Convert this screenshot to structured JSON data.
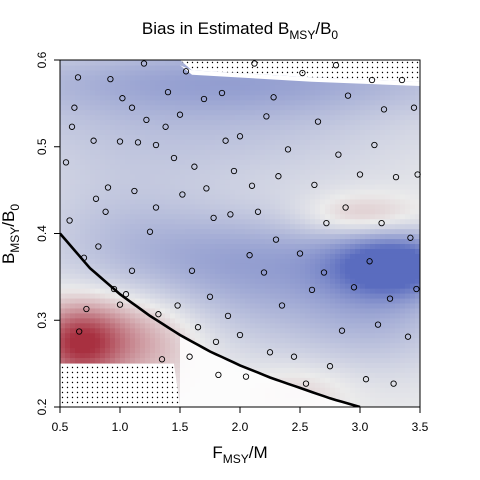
{
  "chart_data": {
    "type": "heatmap",
    "title": "Bias in Estimated B",
    "title_sub": "MSY",
    "title_sep": "/",
    "title_end": "B",
    "title_end_sub": "0",
    "xlabel": "F",
    "xlabel_sub": "MSY",
    "xlabel_end": "/M",
    "ylabel": "B",
    "ylabel_sub": "MSY",
    "ylabel_end": "/B",
    "ylabel_end_sub": "0",
    "xlim": [
      0.5,
      3.5
    ],
    "ylim": [
      0.2,
      0.6
    ],
    "x_ticks": [
      0.5,
      1.0,
      1.5,
      2.0,
      2.5,
      3.0,
      3.5
    ],
    "x_tick_labels": [
      "0.5",
      "1.0",
      "1.5",
      "2.0",
      "2.5",
      "3.0",
      "3.5"
    ],
    "y_ticks": [
      0.2,
      0.3,
      0.4,
      0.5,
      0.6
    ],
    "y_tick_labels": [
      "0.2",
      "0.3",
      "0.4",
      "0.5",
      "0.6"
    ],
    "colors": {
      "negative": "#5a6cbf",
      "neutral": "#ebebeb",
      "positive": "#a83040",
      "curve": "#000000",
      "points": "#000000"
    },
    "grid": false,
    "legend": "none",
    "curve": {
      "x": [
        0.5,
        0.75,
        1.0,
        1.25,
        1.5,
        1.75,
        2.0,
        2.25,
        2.5,
        2.75,
        3.0
      ],
      "y": [
        0.4,
        0.36,
        0.33,
        0.305,
        0.283,
        0.264,
        0.248,
        0.234,
        0.222,
        0.21,
        0.2
      ]
    },
    "hatched_regions": [
      "upper-right: F/M > 1.5 and B/B0 > 0.58",
      "lower-left: below curve, F/M 0.5–1.5, B/B0 0.2–0.25"
    ],
    "bias_field": [
      {
        "x": 3.3,
        "y": 0.365,
        "v": -0.95,
        "sx": 0.35,
        "sy": 0.025
      },
      {
        "x": 2.2,
        "y": 0.37,
        "v": -0.5,
        "sx": 0.8,
        "sy": 0.04
      },
      {
        "x": 1.0,
        "y": 0.4,
        "v": -0.25,
        "sx": 0.6,
        "sy": 0.05
      },
      {
        "x": 1.6,
        "y": 0.52,
        "v": -0.3,
        "sx": 1.4,
        "sy": 0.05
      },
      {
        "x": 2.0,
        "y": 0.58,
        "v": -0.45,
        "sx": 1.6,
        "sy": 0.03
      },
      {
        "x": 3.2,
        "y": 0.31,
        "v": -0.35,
        "sx": 0.5,
        "sy": 0.05
      },
      {
        "x": 2.1,
        "y": 0.3,
        "v": -0.2,
        "sx": 0.7,
        "sy": 0.04
      },
      {
        "x": 0.65,
        "y": 0.275,
        "v": 0.85,
        "sx": 0.25,
        "sy": 0.03
      },
      {
        "x": 1.1,
        "y": 0.28,
        "v": 0.45,
        "sx": 0.4,
        "sy": 0.035
      },
      {
        "x": 3.0,
        "y": 0.42,
        "v": 0.35,
        "sx": 0.35,
        "sy": 0.018
      },
      {
        "x": 2.5,
        "y": 0.22,
        "v": 0.15,
        "sx": 0.3,
        "sy": 0.02
      }
    ],
    "points": [
      {
        "x": 0.55,
        "y": 0.482
      },
      {
        "x": 0.58,
        "y": 0.415
      },
      {
        "x": 0.6,
        "y": 0.523
      },
      {
        "x": 0.62,
        "y": 0.545
      },
      {
        "x": 0.65,
        "y": 0.58
      },
      {
        "x": 0.66,
        "y": 0.287
      },
      {
        "x": 0.7,
        "y": 0.372
      },
      {
        "x": 0.72,
        "y": 0.313
      },
      {
        "x": 0.78,
        "y": 0.507
      },
      {
        "x": 0.8,
        "y": 0.44
      },
      {
        "x": 0.82,
        "y": 0.385
      },
      {
        "x": 0.88,
        "y": 0.425
      },
      {
        "x": 0.9,
        "y": 0.453
      },
      {
        "x": 0.92,
        "y": 0.578
      },
      {
        "x": 0.95,
        "y": 0.336
      },
      {
        "x": 1.0,
        "y": 0.506
      },
      {
        "x": 1.0,
        "y": 0.318
      },
      {
        "x": 1.02,
        "y": 0.556
      },
      {
        "x": 1.05,
        "y": 0.33
      },
      {
        "x": 1.1,
        "y": 0.545
      },
      {
        "x": 1.1,
        "y": 0.357
      },
      {
        "x": 1.12,
        "y": 0.449
      },
      {
        "x": 1.15,
        "y": 0.505
      },
      {
        "x": 1.2,
        "y": 0.596
      },
      {
        "x": 1.22,
        "y": 0.531
      },
      {
        "x": 1.25,
        "y": 0.402
      },
      {
        "x": 1.3,
        "y": 0.43
      },
      {
        "x": 1.3,
        "y": 0.502
      },
      {
        "x": 1.32,
        "y": 0.307
      },
      {
        "x": 1.35,
        "y": 0.255
      },
      {
        "x": 1.38,
        "y": 0.523
      },
      {
        "x": 1.4,
        "y": 0.563
      },
      {
        "x": 1.45,
        "y": 0.487
      },
      {
        "x": 1.48,
        "y": 0.317
      },
      {
        "x": 1.5,
        "y": 0.537
      },
      {
        "x": 1.52,
        "y": 0.445
      },
      {
        "x": 1.55,
        "y": 0.587
      },
      {
        "x": 1.58,
        "y": 0.258
      },
      {
        "x": 1.6,
        "y": 0.357
      },
      {
        "x": 1.62,
        "y": 0.477
      },
      {
        "x": 1.65,
        "y": 0.292
      },
      {
        "x": 1.7,
        "y": 0.555
      },
      {
        "x": 1.72,
        "y": 0.452
      },
      {
        "x": 1.75,
        "y": 0.327
      },
      {
        "x": 1.78,
        "y": 0.418
      },
      {
        "x": 1.8,
        "y": 0.275
      },
      {
        "x": 1.82,
        "y": 0.237
      },
      {
        "x": 1.85,
        "y": 0.562
      },
      {
        "x": 1.88,
        "y": 0.507
      },
      {
        "x": 1.9,
        "y": 0.305
      },
      {
        "x": 1.92,
        "y": 0.422
      },
      {
        "x": 1.95,
        "y": 0.472
      },
      {
        "x": 2.0,
        "y": 0.512
      },
      {
        "x": 2.0,
        "y": 0.283
      },
      {
        "x": 2.05,
        "y": 0.235
      },
      {
        "x": 2.08,
        "y": 0.375
      },
      {
        "x": 2.1,
        "y": 0.455
      },
      {
        "x": 2.12,
        "y": 0.596
      },
      {
        "x": 2.15,
        "y": 0.425
      },
      {
        "x": 2.2,
        "y": 0.355
      },
      {
        "x": 2.22,
        "y": 0.535
      },
      {
        "x": 2.25,
        "y": 0.263
      },
      {
        "x": 2.28,
        "y": 0.557
      },
      {
        "x": 2.3,
        "y": 0.393
      },
      {
        "x": 2.32,
        "y": 0.466
      },
      {
        "x": 2.35,
        "y": 0.317
      },
      {
        "x": 2.4,
        "y": 0.497
      },
      {
        "x": 2.45,
        "y": 0.258
      },
      {
        "x": 2.5,
        "y": 0.377
      },
      {
        "x": 2.52,
        "y": 0.585
      },
      {
        "x": 2.55,
        "y": 0.227
      },
      {
        "x": 2.6,
        "y": 0.335
      },
      {
        "x": 2.62,
        "y": 0.456
      },
      {
        "x": 2.65,
        "y": 0.529
      },
      {
        "x": 2.7,
        "y": 0.355
      },
      {
        "x": 2.72,
        "y": 0.412
      },
      {
        "x": 2.75,
        "y": 0.247
      },
      {
        "x": 2.8,
        "y": 0.594
      },
      {
        "x": 2.82,
        "y": 0.491
      },
      {
        "x": 2.85,
        "y": 0.288
      },
      {
        "x": 2.88,
        "y": 0.43
      },
      {
        "x": 2.9,
        "y": 0.559
      },
      {
        "x": 2.95,
        "y": 0.338
      },
      {
        "x": 3.0,
        "y": 0.468
      },
      {
        "x": 3.05,
        "y": 0.232
      },
      {
        "x": 3.08,
        "y": 0.368
      },
      {
        "x": 3.1,
        "y": 0.577
      },
      {
        "x": 3.12,
        "y": 0.502
      },
      {
        "x": 3.15,
        "y": 0.295
      },
      {
        "x": 3.18,
        "y": 0.412
      },
      {
        "x": 3.2,
        "y": 0.543
      },
      {
        "x": 3.25,
        "y": 0.325
      },
      {
        "x": 3.28,
        "y": 0.227
      },
      {
        "x": 3.3,
        "y": 0.465
      },
      {
        "x": 3.35,
        "y": 0.577
      },
      {
        "x": 3.4,
        "y": 0.281
      },
      {
        "x": 3.42,
        "y": 0.395
      },
      {
        "x": 3.45,
        "y": 0.545
      },
      {
        "x": 3.47,
        "y": 0.336
      },
      {
        "x": 3.48,
        "y": 0.468
      }
    ]
  }
}
